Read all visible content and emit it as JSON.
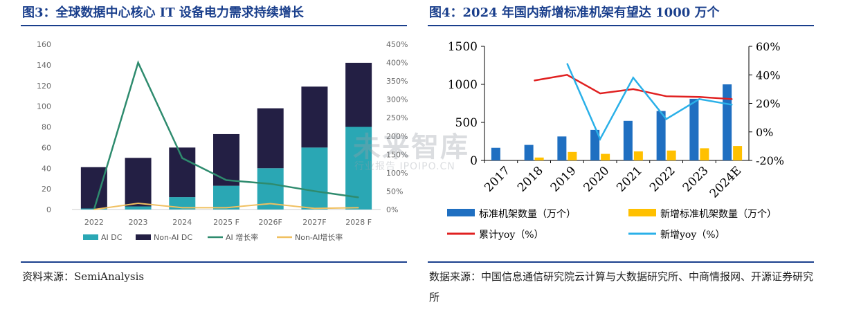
{
  "left": {
    "title": "图3：全球数据中心核心 IT 设备电力需求持续增长",
    "source": "资料来源：SemiAnalysis"
  },
  "right": {
    "title": "图4：2024 年国内新增标准机架有望达 1000 万个",
    "source": "数据来源：中国信息通信研究院云计算与大数据研究所、中商情报网、开源证券研究所"
  },
  "watermark": {
    "main": "未来智库",
    "sub": "行业报告 IPOIPO.CN"
  },
  "colors": {
    "title_blue": "#1a3f8c",
    "ai_dc": "#2aa7b4",
    "non_ai_dc": "#231f44",
    "ai_growth": "#2e8b6e",
    "non_ai_growth": "#f0c060",
    "std_rack": "#1f6fc1",
    "new_rack": "#ffc000",
    "cum_yoy": "#e02020",
    "new_yoy": "#2ab0e8"
  },
  "chart_data": [
    {
      "type": "bar",
      "stacked": true,
      "categories": [
        "2022",
        "2023",
        "2024",
        "2025 F",
        "2026F",
        "2027F",
        "2028 F"
      ],
      "series": [
        {
          "name": "AI DC",
          "values": [
            1,
            3,
            12,
            23,
            40,
            60,
            80
          ]
        },
        {
          "name": "Non-AI DC",
          "values": [
            40,
            47,
            48,
            50,
            58,
            59,
            62
          ]
        }
      ],
      "line_series": [
        {
          "name": "AI 增长率",
          "values": [
            0,
            400,
            140,
            80,
            70,
            50,
            33
          ]
        },
        {
          "name": "Non-AI增长率",
          "values": [
            0,
            17,
            5,
            5,
            16,
            3,
            5
          ]
        }
      ],
      "ylim": [
        0,
        160
      ],
      "yticks": [
        "0",
        "20",
        "40",
        "60",
        "80",
        "100",
        "120",
        "140",
        "160"
      ],
      "y2lim": [
        0,
        450
      ],
      "y2ticks": [
        "0%",
        "50%",
        "100%",
        "150%",
        "200%",
        "250%",
        "300%",
        "350%",
        "400%",
        "450%"
      ],
      "grid": false,
      "legend_position": "bottom"
    },
    {
      "type": "bar",
      "categories": [
        "2017",
        "2018",
        "2019",
        "2020",
        "2021",
        "2022",
        "2023",
        "2024E"
      ],
      "series": [
        {
          "name": "标准机架数量（万个）",
          "values": [
            166,
            204,
            315,
            401,
            520,
            650,
            810,
            1000
          ]
        },
        {
          "name": "新增标准机架数量（万个）",
          "values": [
            0,
            38,
            111,
            86,
            119,
            130,
            160,
            190
          ]
        }
      ],
      "line_series": [
        {
          "name": "累计yoy（%）",
          "values": [
            null,
            0.36,
            0.4,
            0.27,
            0.3,
            0.25,
            0.245,
            0.23
          ]
        },
        {
          "name": "新增yoy（%）",
          "values": [
            null,
            null,
            0.48,
            -0.05,
            0.38,
            0.09,
            0.23,
            0.19
          ]
        }
      ],
      "ylim": [
        0,
        1500
      ],
      "yticks": [
        "0",
        "500",
        "1000",
        "1500"
      ],
      "y2lim": [
        -0.2,
        0.6
      ],
      "y2ticks": [
        "-20%",
        "0%",
        "20%",
        "40%",
        "60%"
      ],
      "grid": false,
      "legend_position": "bottom"
    }
  ]
}
